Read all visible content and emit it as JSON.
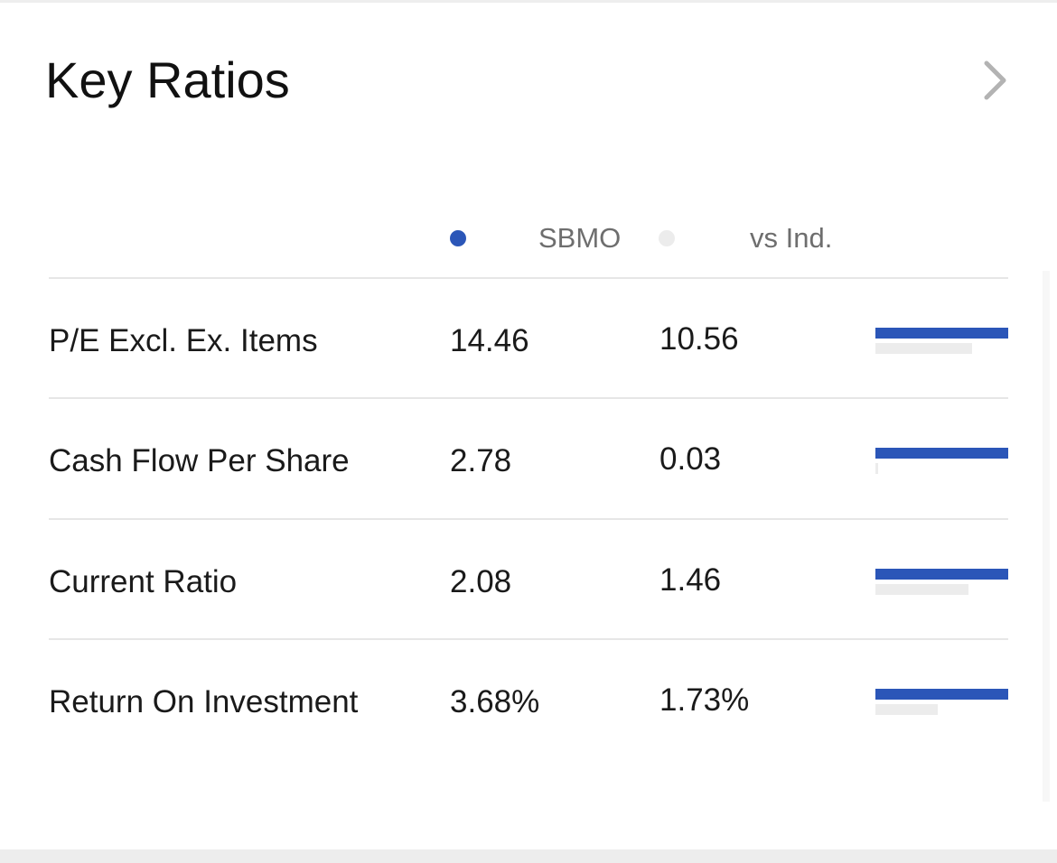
{
  "card": {
    "title": "Key Ratios"
  },
  "icons": {
    "more": "chevron-right-icon",
    "primary_dot": "legend-dot-icon",
    "secondary_dot": "legend-dot-icon"
  },
  "colors": {
    "primary": "#2b56b8",
    "secondary": "#ececec",
    "chevron": "#b3b3b3",
    "divider": "#e6e6e6",
    "legend_text": "#6e6e6e"
  },
  "legend": {
    "primary_label": "SBMO",
    "secondary_label": "vs Ind."
  },
  "ratios": [
    {
      "metric": "P/E Excl. Ex. Items",
      "company": "14.46",
      "industry": "10.56",
      "company_value": 14.46,
      "industry_value": 10.56
    },
    {
      "metric": "Cash Flow Per Share",
      "company": "2.78",
      "industry": "0.03",
      "company_value": 2.78,
      "industry_value": 0.03
    },
    {
      "metric": "Current Ratio",
      "company": "2.08",
      "industry": "1.46",
      "company_value": 2.08,
      "industry_value": 1.46
    },
    {
      "metric": "Return On Investment",
      "company": "3.68%",
      "industry": "1.73%",
      "company_value": 3.68,
      "industry_value": 1.73
    }
  ]
}
